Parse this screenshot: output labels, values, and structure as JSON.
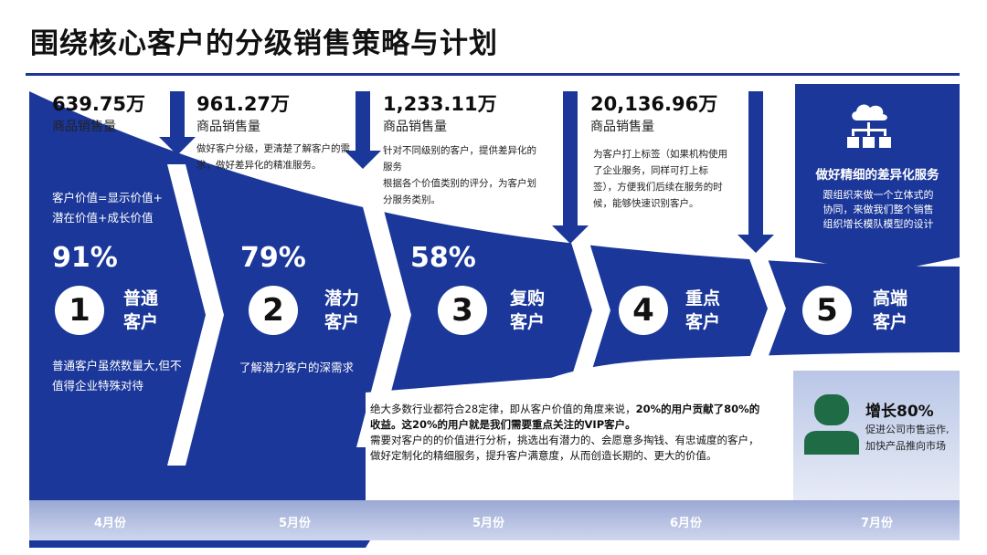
{
  "title": "围绕核心客户的分级销售策略与计划",
  "amounts": [
    {
      "value": "639.75万",
      "label": "商品销售量"
    },
    {
      "value": "961.27万",
      "label": "商品销售量"
    },
    {
      "value": "1,233.11万",
      "label": "商品销售量"
    },
    {
      "value": "20,136.96万",
      "label": "商品销售量"
    }
  ],
  "notes": {
    "n2": "做好客户分级，更清楚了解客户的需求，做好差异化的精准服务。",
    "n3a": "针对不同级别的客户，提供差异化的服务",
    "n3b": "根据各个价值类别的评分，为客户划分服务类别。",
    "n4": "为客户打上标签（如果机构使用了企业服务，同样可打上标签），方便我们后续在服务的时候，能够快速识别客户。"
  },
  "value_formula": {
    "line1": "客户价值=显示价值+",
    "line2": "潜在价值+成长价值"
  },
  "stages": [
    {
      "number": "1",
      "percent": "91%",
      "name_line1": "普通",
      "name_line2": "客户",
      "desc": "普通客户虽然数量大,但不值得企业特殊对待"
    },
    {
      "number": "2",
      "percent": "79%",
      "name_line1": "潜力",
      "name_line2": "客户",
      "desc": "了解潜力客户的深需求"
    },
    {
      "number": "3",
      "percent": "58%",
      "name_line1": "复购",
      "name_line2": "客户"
    },
    {
      "number": "4",
      "name_line1": "重点",
      "name_line2": "客户"
    },
    {
      "number": "5",
      "name_line1": "高端",
      "name_line2": "客户"
    }
  ],
  "service_box": {
    "icon": "org-cloud-icon",
    "title": "做好精细的差异化服务",
    "desc": "跟组织来做一个立体式的协同，来做我们整个销售组织增长模队模型的设计"
  },
  "growth_box": {
    "icon": "person-icon",
    "title": "增长80%",
    "desc": "促进公司市售运作,加快产品推向市场"
  },
  "bottom": {
    "p1_normal": "绝大多数行业都符合28定律，即从客户价值的角度来说，",
    "p1_bold": "20%的用户贡献了80%的收益。这20%的用户就是我们需要重点关注的VIP客户。",
    "p2": "需要对客户的的价值进行分析，挑选出有潜力的、会愿意多掏钱、有忠诚度的客户，做好定制化的精细服务，提升客户满意度，从而创造长期的、更大的价值。"
  },
  "months": [
    "4月份",
    "5月份",
    "5月份",
    "6月份",
    "7月份"
  ],
  "colors": {
    "primary": "#1b3799",
    "light_box": "#c9d3eb",
    "green": "#1f6b46"
  }
}
